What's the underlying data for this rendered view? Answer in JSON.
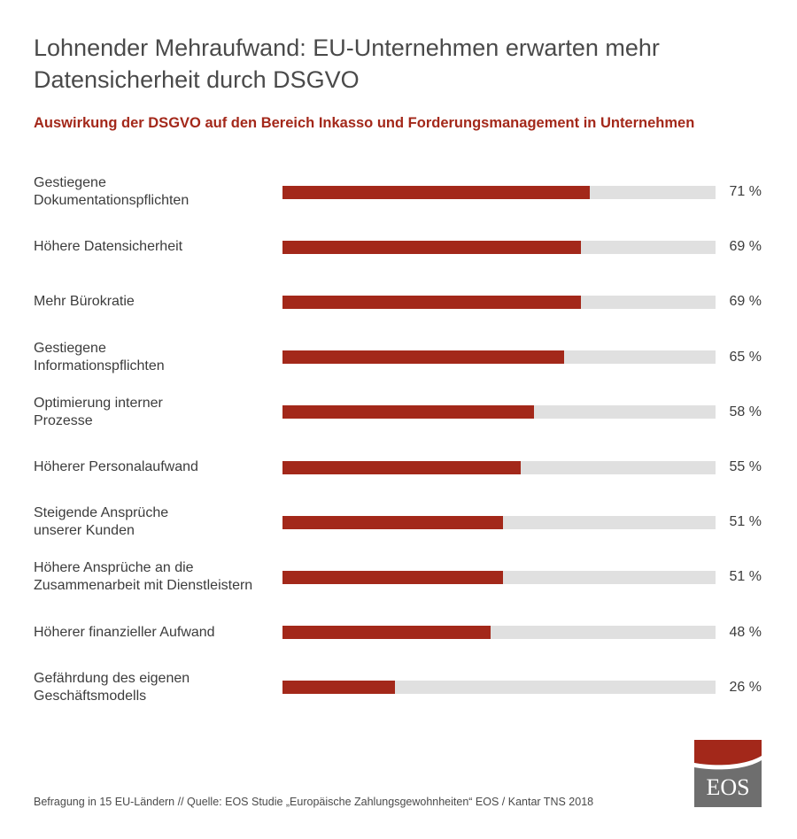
{
  "header": {
    "title_line1": "Lohnender Mehraufwand: EU-Unternehmen erwarten mehr",
    "title_line2": "Datensicherheit durch DSGVO",
    "subtitle": "Auswirkung der DSGVO auf den Bereich Inkasso und Forderungsmanagement in Unternehmen"
  },
  "colors": {
    "bar": "#a3281a",
    "track": "#e0e0e0",
    "accent": "#a3281a",
    "logo_gray": "#6e6e6e"
  },
  "chart_data": {
    "type": "bar",
    "orientation": "horizontal",
    "title": "Auswirkung der DSGVO auf den Bereich Inkasso und Forderungsmanagement in Unternehmen",
    "categories": [
      [
        "Gestiegene",
        "Dokumentationspflichten"
      ],
      [
        "Höhere Datensicherheit"
      ],
      [
        "Mehr Bürokratie"
      ],
      [
        "Gestiegene",
        "Informationspflichten"
      ],
      [
        "Optimierung interner",
        "Prozesse"
      ],
      [
        "Höherer Personalaufwand"
      ],
      [
        "Steigende Ansprüche",
        "unserer Kunden"
      ],
      [
        "Höhere Ansprüche an die",
        "Zusammenarbeit mit Dienstleistern"
      ],
      [
        "Höherer finanzieller Aufwand"
      ],
      [
        "Gefährdung des eigenen",
        "Geschäftsmodells"
      ]
    ],
    "values": [
      71,
      69,
      69,
      65,
      58,
      55,
      51,
      51,
      48,
      26
    ],
    "value_labels": [
      "71 %",
      "69 %",
      "69 %",
      "65 %",
      "58 %",
      "55 %",
      "51 %",
      "51 %",
      "48 %",
      "26 %"
    ],
    "unit": "%",
    "xlim": [
      0,
      100
    ],
    "grid": false,
    "legend": "none"
  },
  "footer": {
    "note": "Befragung in 15 EU-Ländern // Quelle: EOS Studie „Europäische Zahlungsgewohnheiten“ EOS / Kantar TNS 2018",
    "logo_text": "EOS"
  }
}
